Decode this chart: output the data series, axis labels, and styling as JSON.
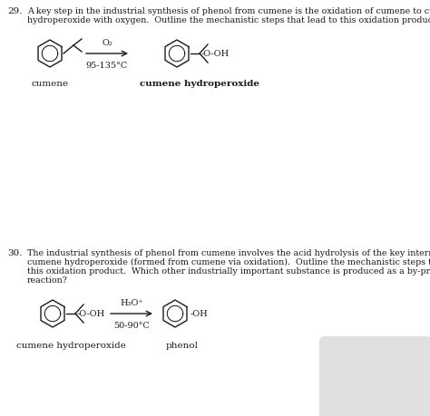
{
  "bg_color": "#ffffff",
  "text_color": "#1a1a1a",
  "q29_number": "29.",
  "q29_text_line1": "A key step in the industrial synthesis of phenol from cumene is the oxidation of cumene to cumene",
  "q29_text_line2": "hydroperoxide with oxygen.  Outline the mechanistic steps that lead to this oxidation product.",
  "q29_reagent_above": "O₂",
  "q29_reagent_below": "95-135°C",
  "q29_label_left": "cumene",
  "q29_label_right": "cumene hydroperoxide",
  "q30_number": "30.",
  "q30_text_line1": "The industrial synthesis of phenol from cumene involves the acid hydrolysis of the key intermediate,",
  "q30_text_line2": "cumene hydroperoxide (formed from cumene via oxidation).  Outline the mechanistic steps that lead to",
  "q30_text_line3": "this oxidation product.  Which other industrially important substance is produced as a by-product in the",
  "q30_text_line4": "reaction?",
  "q30_reagent_above": "H₃O⁺",
  "q30_reagent_below": "50-90°C",
  "q30_label_left": "cumene hydroperoxide",
  "q30_label_right": "phenol",
  "fs_text": 6.8,
  "fs_label": 7.5,
  "fs_reagent": 7.0,
  "fs_num": 7.5
}
